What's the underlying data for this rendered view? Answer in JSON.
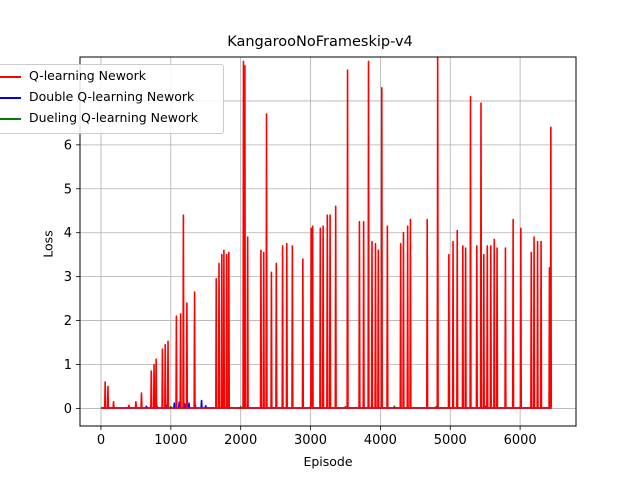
{
  "chart_data": {
    "type": "line",
    "title": "KangarooNoFrameskip-v4",
    "xlabel": "Episode",
    "ylabel": "Loss",
    "xlim": [
      -300,
      6800
    ],
    "ylim": [
      -0.4,
      8.0
    ],
    "xticks": [
      0,
      1000,
      2000,
      3000,
      4000,
      5000,
      6000
    ],
    "yticks": [
      0,
      1,
      2,
      3,
      4,
      5,
      6
    ],
    "grid": true,
    "legend_position": "upper-left",
    "series": [
      {
        "name": "Q-learning Nework",
        "color": "#ff0000",
        "spikes": [
          [
            60,
            0.6
          ],
          [
            100,
            0.5
          ],
          [
            180,
            0.15
          ],
          [
            400,
            0.07
          ],
          [
            500,
            0.15
          ],
          [
            580,
            0.35
          ],
          [
            720,
            0.85
          ],
          [
            760,
            1.0
          ],
          [
            790,
            1.12
          ],
          [
            880,
            1.35
          ],
          [
            920,
            1.45
          ],
          [
            960,
            1.53
          ],
          [
            1080,
            2.1
          ],
          [
            1140,
            2.15
          ],
          [
            1180,
            4.4
          ],
          [
            1230,
            2.4
          ],
          [
            1340,
            2.65
          ],
          [
            1650,
            2.95
          ],
          [
            1690,
            3.3
          ],
          [
            1730,
            3.5
          ],
          [
            1760,
            3.6
          ],
          [
            1800,
            3.5
          ],
          [
            1830,
            3.55
          ],
          [
            2040,
            7.9
          ],
          [
            2060,
            7.8
          ],
          [
            2100,
            3.9
          ],
          [
            2290,
            3.6
          ],
          [
            2330,
            3.55
          ],
          [
            2370,
            6.7
          ],
          [
            2440,
            3.1
          ],
          [
            2510,
            3.3
          ],
          [
            2600,
            3.7
          ],
          [
            2660,
            3.75
          ],
          [
            2740,
            3.7
          ],
          [
            2890,
            3.4
          ],
          [
            3010,
            4.1
          ],
          [
            3030,
            4.15
          ],
          [
            3140,
            4.1
          ],
          [
            3180,
            4.15
          ],
          [
            3240,
            4.4
          ],
          [
            3280,
            4.4
          ],
          [
            3360,
            4.6
          ],
          [
            3530,
            7.7
          ],
          [
            3700,
            4.25
          ],
          [
            3760,
            4.25
          ],
          [
            3830,
            7.9
          ],
          [
            3880,
            3.8
          ],
          [
            3930,
            3.75
          ],
          [
            3970,
            3.6
          ],
          [
            4020,
            7.3
          ],
          [
            4100,
            4.15
          ],
          [
            4290,
            3.75
          ],
          [
            4330,
            4.0
          ],
          [
            4390,
            4.15
          ],
          [
            4430,
            4.3
          ],
          [
            4670,
            4.3
          ],
          [
            4820,
            8.0
          ],
          [
            4980,
            3.5
          ],
          [
            5040,
            3.8
          ],
          [
            5100,
            4.05
          ],
          [
            5180,
            3.7
          ],
          [
            5220,
            3.65
          ],
          [
            5290,
            7.1
          ],
          [
            5380,
            3.7
          ],
          [
            5440,
            6.95
          ],
          [
            5480,
            3.5
          ],
          [
            5530,
            3.7
          ],
          [
            5580,
            3.7
          ],
          [
            5630,
            3.85
          ],
          [
            5670,
            3.65
          ],
          [
            5790,
            3.65
          ],
          [
            5900,
            4.3
          ],
          [
            6010,
            4.1
          ],
          [
            6160,
            3.55
          ],
          [
            6200,
            3.9
          ],
          [
            6250,
            3.8
          ],
          [
            6300,
            3.8
          ],
          [
            6420,
            3.2
          ],
          [
            6440,
            6.4
          ]
        ]
      },
      {
        "name": "Double Q-learning Nework",
        "color": "#0000ff",
        "spikes": [
          [
            650,
            0.05
          ],
          [
            800,
            0.06
          ],
          [
            950,
            0.08
          ],
          [
            1050,
            0.12
          ],
          [
            1120,
            0.14
          ],
          [
            1200,
            0.1
          ],
          [
            1260,
            0.12
          ],
          [
            1350,
            0.08
          ],
          [
            1440,
            0.18
          ],
          [
            1500,
            0.06
          ]
        ]
      },
      {
        "name": "Dueling Q-learning Nework",
        "color": "#008000",
        "spikes": [
          [
            1000,
            0.04
          ],
          [
            2000,
            0.04
          ],
          [
            3000,
            0.05
          ],
          [
            3500,
            0.04
          ],
          [
            4200,
            0.05
          ],
          [
            4800,
            0.04
          ],
          [
            5500,
            0.05
          ],
          [
            6000,
            0.04
          ]
        ]
      }
    ]
  }
}
